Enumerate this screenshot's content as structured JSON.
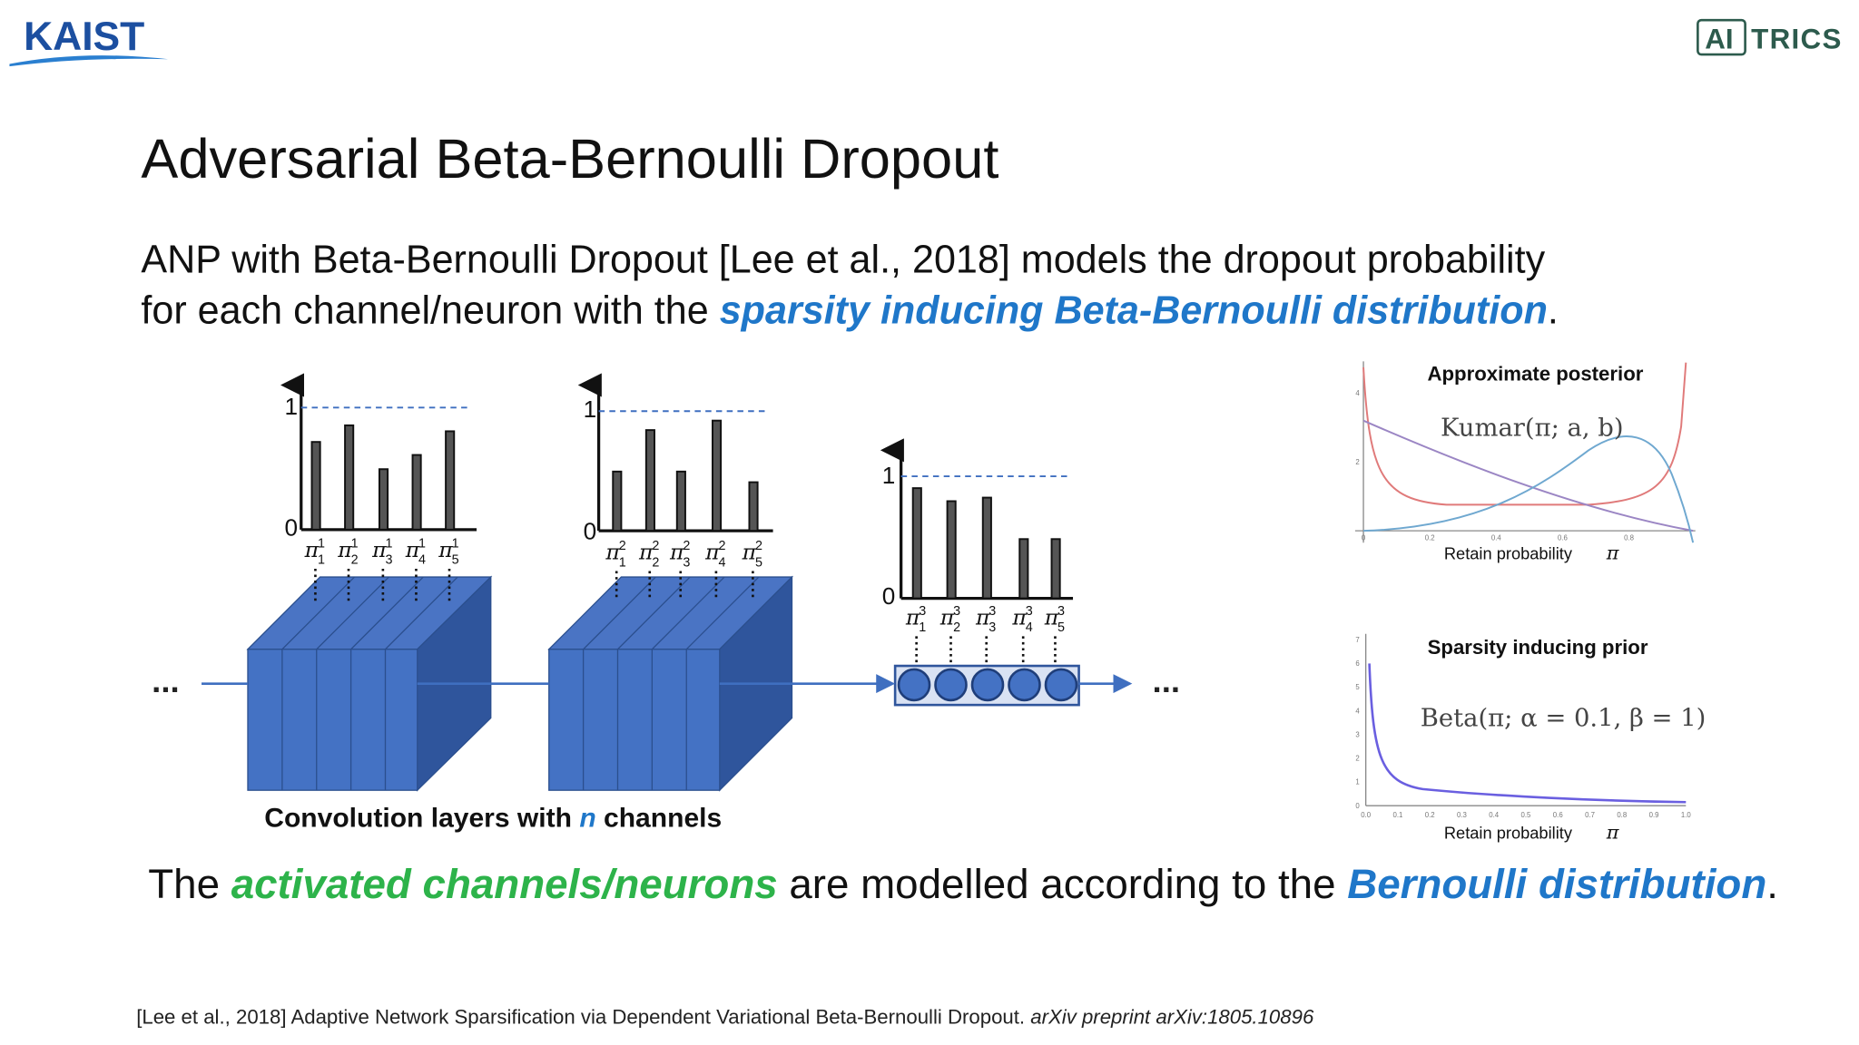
{
  "header": {
    "left_logo": "KAIST",
    "right_logo": {
      "boxed": "AI",
      "rest": "TRICS"
    }
  },
  "title": "Adversarial Beta-Bernoulli Dropout",
  "intro": {
    "line1": "ANP with Beta-Bernoulli Dropout [Lee et al., 2018] models the dropout probability",
    "line2_start": "for each channel/neuron with the ",
    "line2_highlight": "sparsity inducing Beta-Bernoulli distribution",
    "line2_end": "."
  },
  "diagram": {
    "layers": [
      {
        "top": "1",
        "bottom": "0",
        "labels": [
          {
            "symbol": "π",
            "sup": "1",
            "sub": "1"
          },
          {
            "symbol": "π",
            "sup": "1",
            "sub": "2"
          },
          {
            "symbol": "π",
            "sup": "1",
            "sub": "3"
          },
          {
            "symbol": "π",
            "sup": "1",
            "sub": "4"
          },
          {
            "symbol": "π",
            "sup": "1",
            "sub": "5"
          }
        ]
      },
      {
        "top": "1",
        "bottom": "0",
        "labels": [
          {
            "symbol": "π",
            "sup": "2",
            "sub": "1"
          },
          {
            "symbol": "π",
            "sup": "2",
            "sub": "2"
          },
          {
            "symbol": "π",
            "sup": "2",
            "sub": "3"
          },
          {
            "symbol": "π",
            "sup": "2",
            "sub": "4"
          },
          {
            "symbol": "π",
            "sup": "2",
            "sub": "5"
          }
        ]
      },
      {
        "top": "1",
        "bottom": "0",
        "labels": [
          {
            "symbol": "π",
            "sup": "3",
            "sub": "1"
          },
          {
            "symbol": "π",
            "sup": "3",
            "sub": "2"
          },
          {
            "symbol": "π",
            "sup": "3",
            "sub": "3"
          },
          {
            "symbol": "π",
            "sup": "3",
            "sub": "4"
          },
          {
            "symbol": "π",
            "sup": "3",
            "sub": "5"
          }
        ]
      }
    ],
    "ellipsis_left": "...",
    "ellipsis_right": "...",
    "caption": {
      "start": "Convolution layers with ",
      "highlight": "n",
      "end": " channels"
    }
  },
  "plots": [
    {
      "title": "Approximate posterior",
      "formula": "Kumar(π; a, b)",
      "xlabel": "Retain probability",
      "xsymbol": "π",
      "xticks": [
        "0",
        "0.2",
        "0.4",
        "0.6",
        "0.8"
      ],
      "yticks": [
        "2",
        "4"
      ]
    },
    {
      "title": "Sparsity inducing prior",
      "formula": "Beta(π; α = 0.1, β = 1)",
      "xlabel": "Retain probability",
      "xsymbol": "π",
      "xticks": [
        "0.0",
        "0.1",
        "0.2",
        "0.3",
        "0.4",
        "0.5",
        "0.6",
        "0.7",
        "0.8",
        "0.9",
        "1.0"
      ],
      "yticks": [
        "0",
        "1",
        "2",
        "3",
        "4",
        "5",
        "6",
        "7"
      ]
    }
  ],
  "summary": {
    "start": "The ",
    "highlight1": "activated channels/neurons",
    "middle": " are modelled according to the ",
    "highlight2": "Bernoulli distribution",
    "end": "."
  },
  "footnote": {
    "text": "[Lee et al., 2018] Adaptive Network Sparsification via Dependent Variational Beta-Bernoulli Dropout. ",
    "italic": "arXiv preprint arXiv:1805.10896"
  }
}
